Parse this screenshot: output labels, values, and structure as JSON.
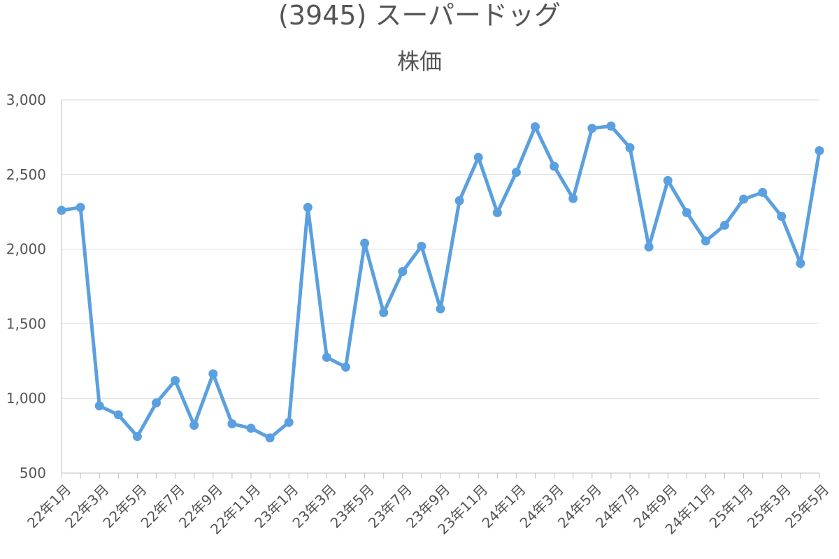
{
  "chart_data": {
    "type": "line",
    "title": "(3945) スーパードッグ",
    "subtitle": "株価",
    "xlabel": "",
    "ylabel": "",
    "ylim": [
      500,
      3000
    ],
    "yticks": [
      500,
      1000,
      1500,
      2000,
      2500,
      3000
    ],
    "ytick_labels": [
      "500",
      "1,000",
      "1,500",
      "2,000",
      "2,500",
      "3,000"
    ],
    "grid": true,
    "legend": "none",
    "line_color": "#5aa0e0",
    "categories": [
      "22年1月",
      "22年2月",
      "22年3月",
      "22年4月",
      "22年5月",
      "22年6月",
      "22年7月",
      "22年8月",
      "22年9月",
      "22年10月",
      "22年11月",
      "22年12月",
      "23年1月",
      "23年2月",
      "23年3月",
      "23年4月",
      "23年5月",
      "23年6月",
      "23年7月",
      "23年8月",
      "23年9月",
      "23年10月",
      "23年11月",
      "23年12月",
      "24年1月",
      "24年2月",
      "24年3月",
      "24年4月",
      "24年5月",
      "24年6月",
      "24年7月",
      "24年8月",
      "24年9月",
      "24年10月",
      "24年11月",
      "24年12月",
      "25年1月",
      "25年2月",
      "25年3月",
      "25年4月",
      "25年5月"
    ],
    "shown_x_labels": [
      "22年1月",
      "22年3月",
      "22年5月",
      "22年7月",
      "22年9月",
      "22年11月",
      "23年1月",
      "23年3月",
      "23年5月",
      "23年7月",
      "23年9月",
      "23年11月",
      "24年1月",
      "24年3月",
      "24年5月",
      "24年7月",
      "24年9月",
      "24年11月",
      "25年1月",
      "25年3月",
      "25年5月"
    ],
    "values": [
      2260,
      2280,
      950,
      890,
      745,
      970,
      1120,
      820,
      1165,
      830,
      800,
      735,
      840,
      2280,
      1275,
      1210,
      2040,
      1575,
      1850,
      2020,
      1600,
      2325,
      2615,
      2245,
      2515,
      2820,
      2555,
      2340,
      2810,
      2825,
      2680,
      2015,
      2460,
      2245,
      2055,
      2160,
      2335,
      2380,
      2220,
      1905,
      2660
    ]
  }
}
